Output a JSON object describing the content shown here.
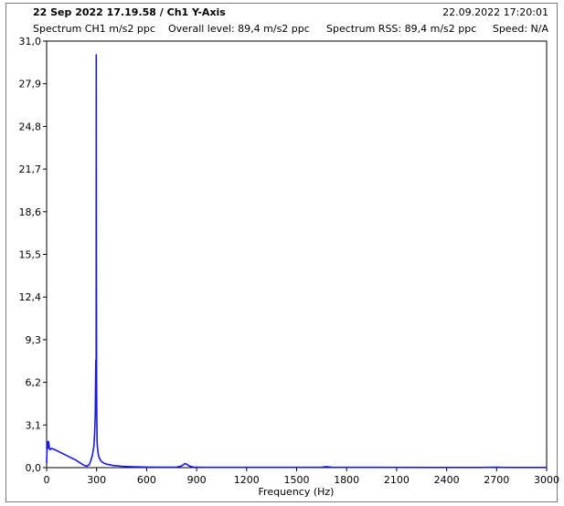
{
  "header": {
    "title": "22 Sep 2022 17.19.58 / Ch1 Y-Axis",
    "datetime": "22.09.2022 17:20:01",
    "spectrum_label": "Spectrum CH1 m/s2 ppc",
    "overall_level": "Overall level: 89,4 m/s2 ppc",
    "spectrum_rss": "Spectrum RSS: 89,4 m/s2 ppc",
    "speed": "Speed: N/A"
  },
  "chart_data": {
    "type": "line",
    "title": "",
    "xlabel": "Frequency (Hz)",
    "ylabel": "",
    "xlim": [
      0,
      3000
    ],
    "ylim": [
      0,
      31.0
    ],
    "x_ticks": [
      0,
      300,
      600,
      900,
      1200,
      1500,
      1800,
      2100,
      2400,
      2700,
      3000
    ],
    "x_tick_labels": [
      "0",
      "300",
      "600",
      "900",
      "1200",
      "1500",
      "1800",
      "2100",
      "2400",
      "2700",
      "3000"
    ],
    "y_ticks": [
      0,
      3.1,
      6.2,
      9.3,
      12.4,
      15.5,
      18.6,
      21.7,
      24.8,
      27.9,
      31.0
    ],
    "y_tick_labels": [
      "0,0",
      "3,1",
      "6,2",
      "9,3",
      "12,4",
      "15,5",
      "18,6",
      "21,7",
      "24,8",
      "27,9",
      "31,0"
    ],
    "grid": false,
    "line_color": "#1a1adc",
    "series": [
      {
        "x": [
          0,
          4,
          8,
          12,
          16,
          20,
          30,
          50,
          75,
          100,
          125,
          150,
          175,
          200,
          220,
          240,
          255,
          265,
          275,
          283,
          288,
          292,
          295,
          297,
          298,
          299,
          300,
          301,
          302,
          303,
          305,
          308,
          312,
          318,
          325,
          340,
          360,
          400,
          450,
          500,
          550,
          600,
          700,
          780,
          810,
          830,
          840,
          855,
          880,
          950,
          1100,
          1300,
          1500,
          1650,
          1680,
          1710,
          1800,
          2000,
          2300,
          2600,
          2700,
          2750,
          2800,
          3000
        ],
        "y": [
          0.3,
          1.9,
          1.4,
          1.9,
          1.5,
          1.3,
          1.4,
          1.3,
          1.15,
          1.0,
          0.85,
          0.7,
          0.55,
          0.35,
          0.2,
          0.1,
          0.2,
          0.5,
          0.9,
          1.5,
          2.4,
          3.8,
          7.8,
          6.5,
          30.0,
          14.0,
          6.0,
          3.6,
          2.6,
          1.9,
          1.5,
          1.15,
          0.85,
          0.65,
          0.5,
          0.35,
          0.25,
          0.15,
          0.1,
          0.07,
          0.05,
          0.04,
          0.03,
          0.04,
          0.12,
          0.3,
          0.25,
          0.12,
          0.04,
          0.02,
          0.02,
          0.02,
          0.02,
          0.03,
          0.07,
          0.03,
          0.02,
          0.02,
          0.01,
          0.01,
          0.03,
          0.01,
          0.01,
          0.01
        ]
      }
    ]
  }
}
